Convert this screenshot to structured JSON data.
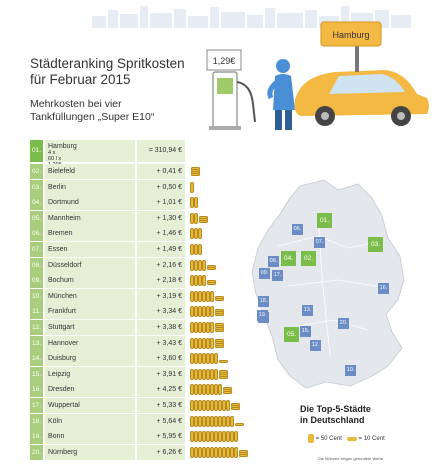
{
  "header": {
    "title_line1": "Städteranking Spritkosten",
    "title_line2": "für Februar 2015",
    "subtitle_line1": "Mehrkosten bei vier",
    "subtitle_line2": "Tankfüllungen „Super E10“"
  },
  "scene": {
    "pump_price": "1,29€",
    "car_sign": "Hamburg"
  },
  "chart_data": {
    "type": "table",
    "title": "Städteranking Spritkosten für Februar 2015",
    "base": {
      "rank": "01.",
      "city": "Hamburg",
      "formula": "4 x 60 l x 1,295 €",
      "value": "= 310,94 €"
    },
    "rows": [
      {
        "rank": "02.",
        "city": "Bielefeld",
        "value": "+ 0,41 €",
        "cents": 41
      },
      {
        "rank": "03.",
        "city": "Berlin",
        "value": "+ 0,50 €",
        "cents": 50
      },
      {
        "rank": "04.",
        "city": "Dortmund",
        "value": "+ 1,01 €",
        "cents": 101
      },
      {
        "rank": "05.",
        "city": "Mannheim",
        "value": "+ 1,30 €",
        "cents": 130
      },
      {
        "rank": "06.",
        "city": "Bremen",
        "value": "+ 1,46 €",
        "cents": 146
      },
      {
        "rank": "07.",
        "city": "Essen",
        "value": "+ 1,49 €",
        "cents": 149
      },
      {
        "rank": "08.",
        "city": "Düsseldorf",
        "value": "+ 2,16 €",
        "cents": 216
      },
      {
        "rank": "09.",
        "city": "Bochum",
        "value": "+ 2,18 €",
        "cents": 218
      },
      {
        "rank": "10.",
        "city": "München",
        "value": "+ 3,19 €",
        "cents": 319
      },
      {
        "rank": "11.",
        "city": "Frankfurt",
        "value": "+ 3,34 €",
        "cents": 334
      },
      {
        "rank": "12.",
        "city": "Stuttgart",
        "value": "+ 3,38 €",
        "cents": 338
      },
      {
        "rank": "13.",
        "city": "Hannover",
        "value": "+ 3,43 €",
        "cents": 343
      },
      {
        "rank": "14.",
        "city": "Duisburg",
        "value": "+ 3,60 €",
        "cents": 360
      },
      {
        "rank": "15.",
        "city": "Leipzig",
        "value": "+ 3,91 €",
        "cents": 391
      },
      {
        "rank": "16.",
        "city": "Dresden",
        "value": "+ 4,25 €",
        "cents": 425
      },
      {
        "rank": "17.",
        "city": "Wuppertal",
        "value": "+ 5,33 €",
        "cents": 533
      },
      {
        "rank": "18.",
        "city": "Köln",
        "value": "+ 5,64 €",
        "cents": 564
      },
      {
        "rank": "19.",
        "city": "Bonn",
        "value": "+ 5,95 €",
        "cents": 595
      },
      {
        "rank": "20.",
        "city": "Nürnberg",
        "value": "+ 6,26 €",
        "cents": 626
      }
    ]
  },
  "map": {
    "caption_line1": "Die Top-5-Städte",
    "caption_line2": "in Deutschland",
    "markers": [
      "01.",
      "02.",
      "03.",
      "04.",
      "05.",
      "06.",
      "07.",
      "08.",
      "09.",
      "10.",
      "11.",
      "12.",
      "13.",
      "14.",
      "15.",
      "16.",
      "17.",
      "18.",
      "19.",
      "20."
    ]
  },
  "legend": {
    "fifty": "= 50 Cent",
    "ten": "= 10 Cent",
    "note": "Die Münzen zeigen gerundete Werte"
  },
  "colors": {
    "accent": "#7bbd4a",
    "row_bg": "#e4efd6",
    "map_marker": "#6b8cc4",
    "coin": "#e8b93a"
  }
}
